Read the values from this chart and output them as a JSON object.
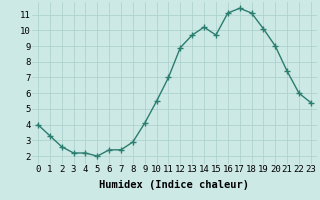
{
  "x": [
    0,
    1,
    2,
    3,
    4,
    5,
    6,
    7,
    8,
    9,
    10,
    11,
    12,
    13,
    14,
    15,
    16,
    17,
    18,
    19,
    20,
    21,
    22,
    23
  ],
  "y": [
    4.0,
    3.3,
    2.6,
    2.2,
    2.2,
    2.0,
    2.4,
    2.4,
    2.9,
    4.1,
    5.5,
    7.0,
    8.9,
    9.7,
    10.2,
    9.7,
    11.1,
    11.4,
    11.1,
    10.1,
    9.0,
    7.4,
    6.0,
    5.4
  ],
  "line_color": "#2a7d6f",
  "marker": "+",
  "marker_size": 4,
  "marker_linewidth": 1.0,
  "background_color": "#cce9e5",
  "grid_color": "#aacfca",
  "xlabel": "Humidex (Indice chaleur)",
  "ylabel": "",
  "xlim": [
    -0.5,
    23.5
  ],
  "ylim": [
    1.5,
    11.8
  ],
  "yticks": [
    2,
    3,
    4,
    5,
    6,
    7,
    8,
    9,
    10,
    11
  ],
  "xticks": [
    0,
    1,
    2,
    3,
    4,
    5,
    6,
    7,
    8,
    9,
    10,
    11,
    12,
    13,
    14,
    15,
    16,
    17,
    18,
    19,
    20,
    21,
    22,
    23
  ],
  "tick_fontsize": 6.5,
  "xlabel_fontsize": 7.5,
  "line_width": 1.0
}
